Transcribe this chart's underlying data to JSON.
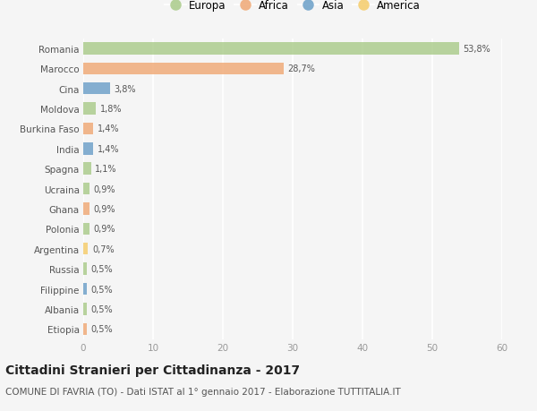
{
  "countries": [
    "Romania",
    "Marocco",
    "Cina",
    "Moldova",
    "Burkina Faso",
    "India",
    "Spagna",
    "Ucraina",
    "Ghana",
    "Polonia",
    "Argentina",
    "Russia",
    "Filippine",
    "Albania",
    "Etiopia"
  ],
  "values": [
    53.8,
    28.7,
    3.8,
    1.8,
    1.4,
    1.4,
    1.1,
    0.9,
    0.9,
    0.9,
    0.7,
    0.5,
    0.5,
    0.5,
    0.5
  ],
  "labels": [
    "53,8%",
    "28,7%",
    "3,8%",
    "1,8%",
    "1,4%",
    "1,4%",
    "1,1%",
    "0,9%",
    "0,9%",
    "0,9%",
    "0,7%",
    "0,5%",
    "0,5%",
    "0,5%",
    "0,5%"
  ],
  "continents": [
    "Europa",
    "Africa",
    "Asia",
    "Europa",
    "Africa",
    "Asia",
    "Europa",
    "Europa",
    "Africa",
    "Europa",
    "America",
    "Europa",
    "Asia",
    "Europa",
    "Africa"
  ],
  "colors": {
    "Europa": "#aacb8a",
    "Africa": "#f0a875",
    "Asia": "#6b9fc8",
    "America": "#f5cc6a"
  },
  "legend_order": [
    "Europa",
    "Africa",
    "Asia",
    "America"
  ],
  "title": "Cittadini Stranieri per Cittadinanza - 2017",
  "subtitle": "COMUNE DI FAVRIA (TO) - Dati ISTAT al 1° gennaio 2017 - Elaborazione TUTTITALIA.IT",
  "xlim": [
    0,
    60
  ],
  "xticks": [
    0,
    10,
    20,
    30,
    40,
    50,
    60
  ],
  "background_color": "#f5f5f5",
  "grid_color": "#ffffff",
  "bar_height": 0.6
}
